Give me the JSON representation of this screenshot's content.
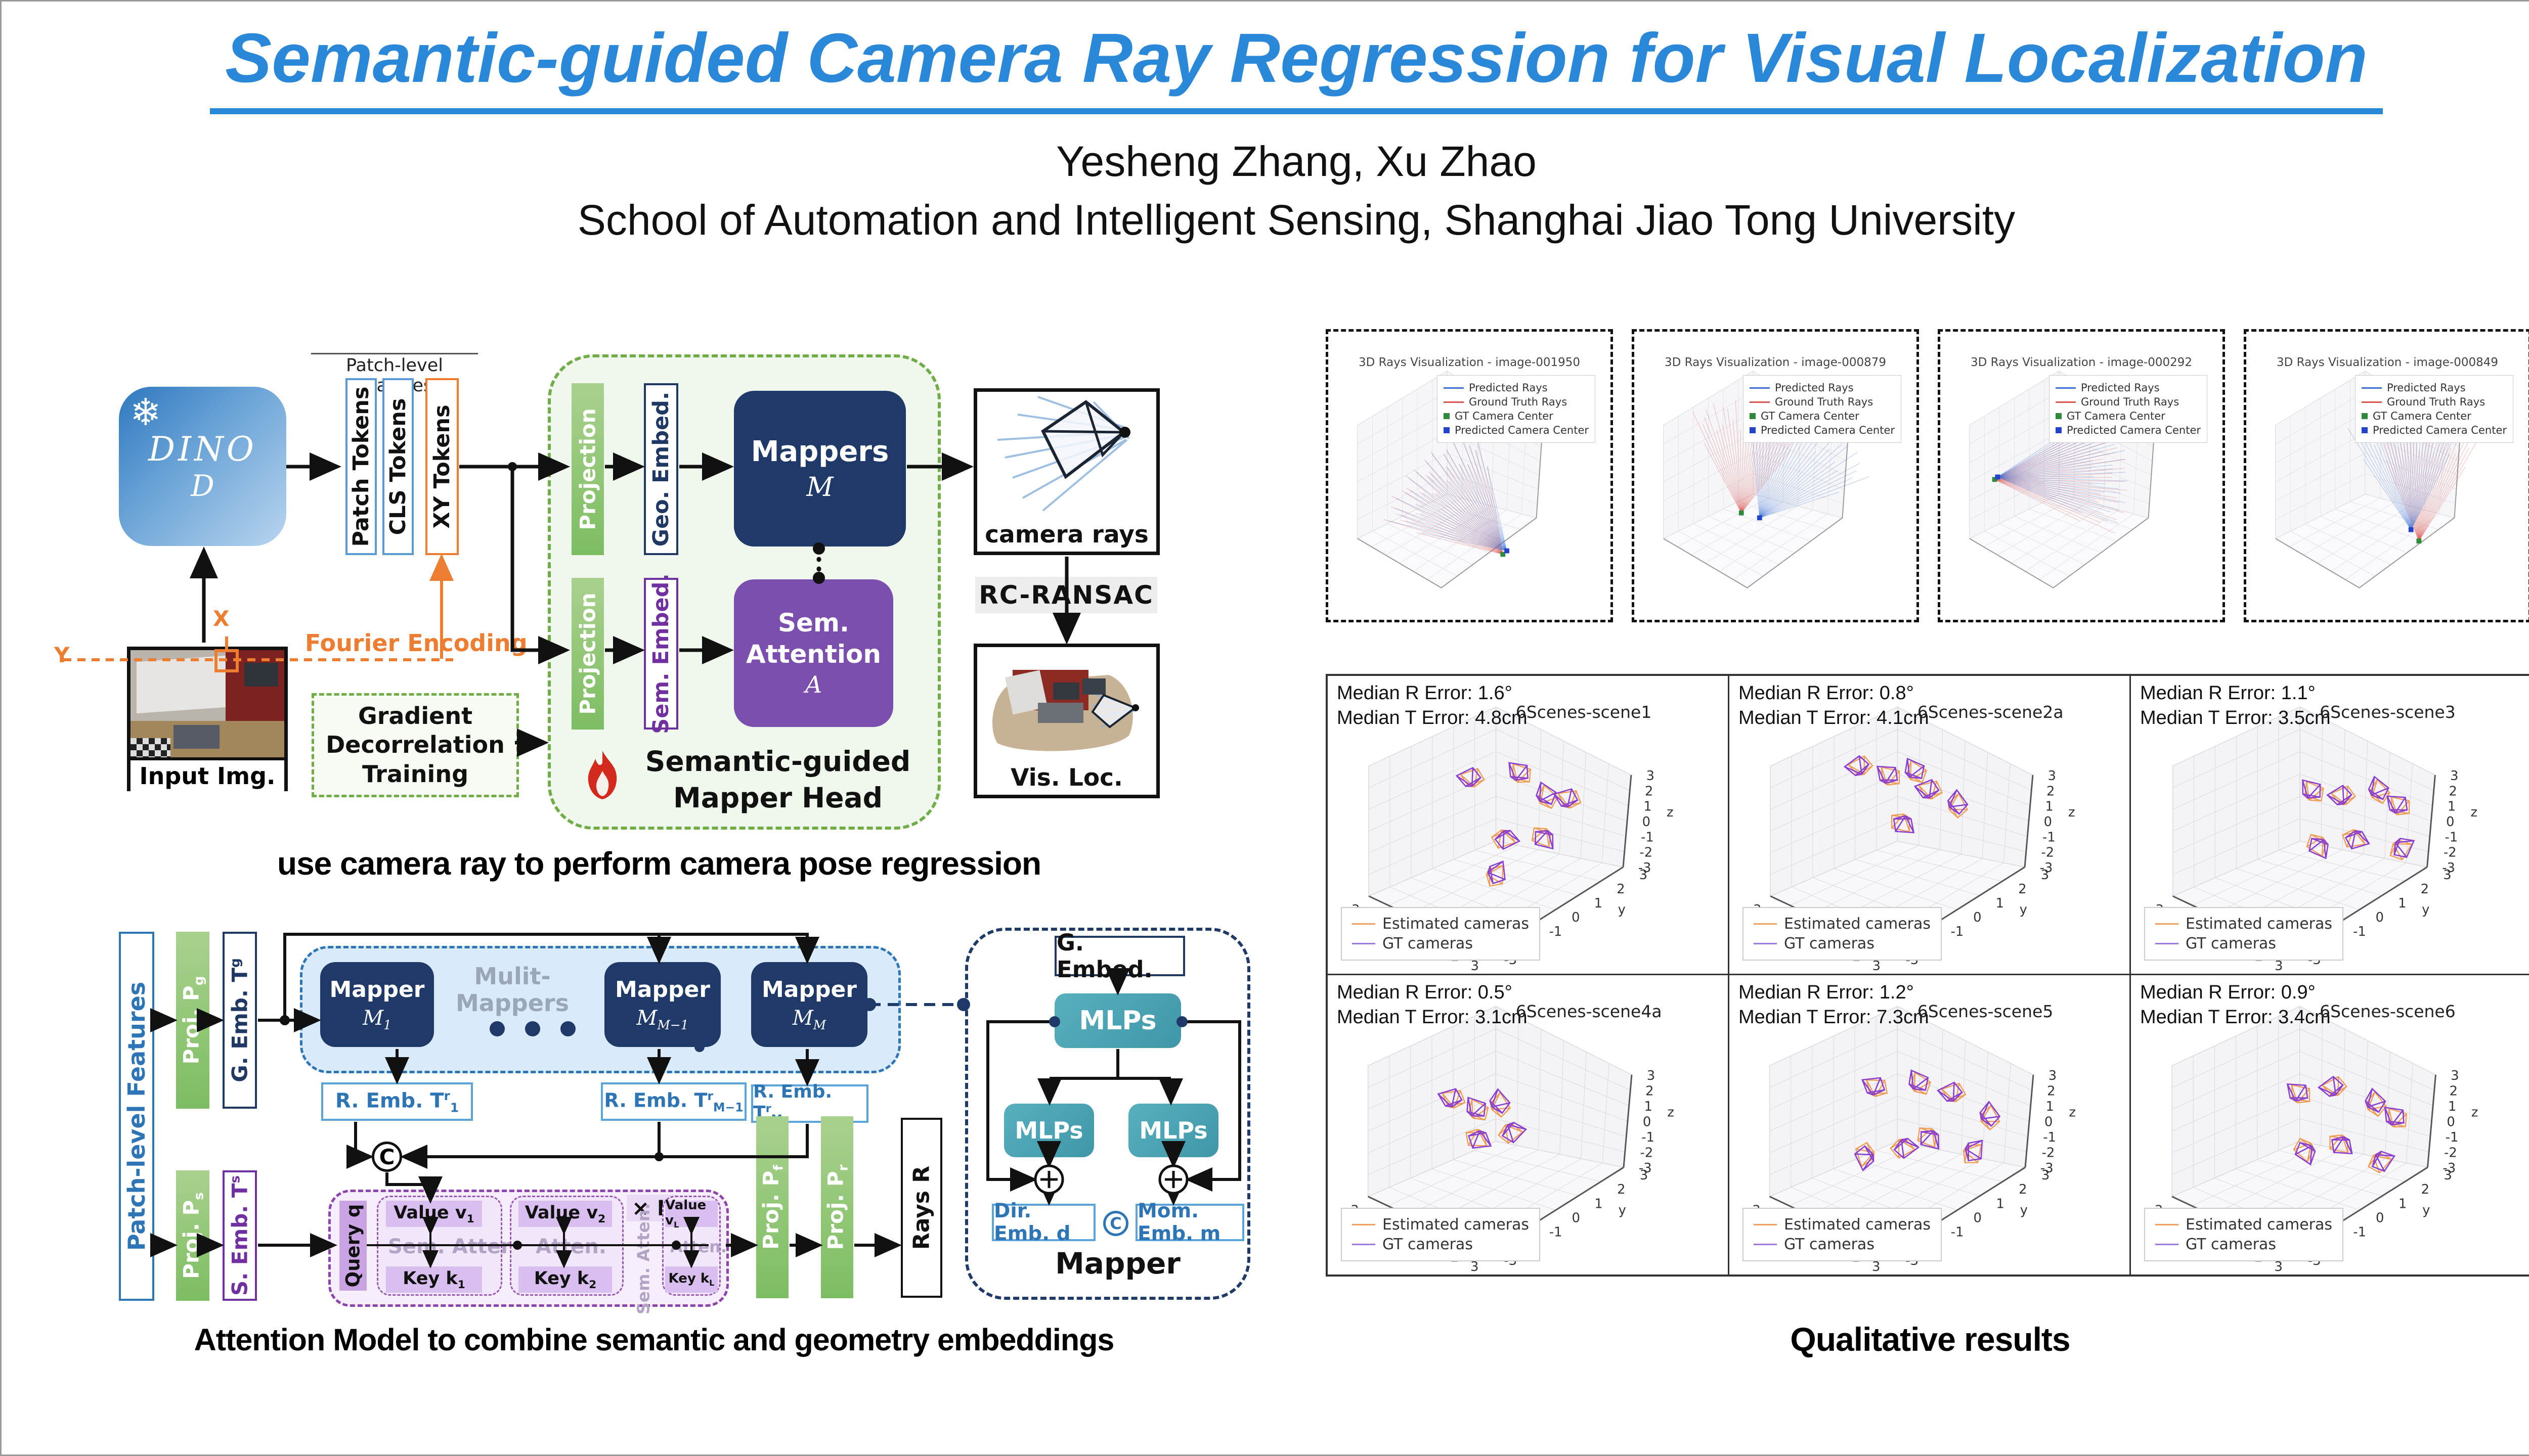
{
  "header": {
    "title": "Semantic-guided Camera Ray Regression for Visual Localization",
    "authors": "Yesheng Zhang, Xu Zhao",
    "affiliation": "School of Automation and Intelligent Sensing, Shanghai Jiao Tong University"
  },
  "arch": {
    "dino": {
      "name": "DINO",
      "symbol": "D",
      "snowflake": "❄"
    },
    "patch_features_label": "Patch-level Features",
    "tokens": [
      {
        "label": "Patch Tokens"
      },
      {
        "label": "CLS Tokens"
      },
      {
        "label": "XY Tokens"
      }
    ],
    "projection1": "Projection",
    "projection2": "Projection",
    "geo_embed": "Geo. Embed.",
    "sem_embed": "Sem. Embed.",
    "mappers": {
      "line1": "Mappers",
      "symbol": "M"
    },
    "sem_attention": {
      "line1": "Sem.",
      "line2": "Attention",
      "symbol": "A"
    },
    "head_label": {
      "line1": "Semantic-guided",
      "line2": "Mapper Head"
    },
    "camera_rays_label": "camera rays",
    "rc_ransac": "RC-RANSAC",
    "vis_loc_label": "Vis. Loc.",
    "input_img_label": "Input Img.",
    "fourier": "Fourier Encoding",
    "x_label": "X",
    "y_label": "Y",
    "gradient_box": {
      "line1": "Gradient",
      "line2": "Decorrelation",
      "line3": "Training"
    },
    "caption": "use camera ray to perform camera pose regression"
  },
  "attention_model": {
    "patch_level_features": "Patch-level Features",
    "proj_g": {
      "text": "Proj. P",
      "sub": "g"
    },
    "g_emb": {
      "text": "G. Emb. T",
      "sup": "g"
    },
    "multi_mappers_label": {
      "line1": "Mulit-",
      "line2": "Mappers"
    },
    "mapper1": {
      "line1": "Mapper",
      "sym": "M",
      "sub": "1"
    },
    "mapper_m1": {
      "line1": "Mapper",
      "sym": "M",
      "sub": "M−1"
    },
    "mapper_m": {
      "line1": "Mapper",
      "sym": "M",
      "sub": "M"
    },
    "r_emb_1": {
      "text": "R. Emb. T",
      "sup": "r",
      "sub": "1"
    },
    "r_emb_m1": {
      "text": "R. Emb. T",
      "sup": "r",
      "sub": "M−1"
    },
    "r_emb_m": {
      "text": "R. Emb. T",
      "sup": "r",
      "sub": "M"
    },
    "concat": "C",
    "query": {
      "text": "Query q"
    },
    "times_l": "× L",
    "sem_atten_vertical": "Sem. Atten.",
    "cells": [
      {
        "value": "Value v",
        "vsub": "1",
        "key": "Key k",
        "ksub": "1",
        "ghost": "Sem. Atten."
      },
      {
        "value": "Value v",
        "vsub": "2",
        "key": "Key k",
        "ksub": "2",
        "ghost": "Atten."
      },
      {
        "value": "Value v",
        "vsub": "L",
        "key": "Key k",
        "ksub": "L",
        "ghost": "Atten."
      }
    ],
    "s_emb": {
      "text": "S. Emb. T",
      "sup": "s"
    },
    "proj_s": {
      "text": "Proj. P",
      "sub": "s"
    },
    "proj_f": {
      "text": "Proj. P",
      "sub": "f"
    },
    "proj_r": {
      "text": "Proj. P",
      "sub": "r"
    },
    "rays": {
      "text": "Rays R"
    },
    "mapper_detail": {
      "g_embed": "G. Embed.",
      "mlps_top": "MLPs",
      "mlps_left": "MLPs",
      "mlps_right": "MLPs",
      "dir_emb": "Dir. Emb. d",
      "concat": "C",
      "mom_emb": "Mom. Emb. m",
      "label": "Mapper"
    },
    "caption": "Attention Model to combine semantic and geometry embeddings"
  },
  "qualitative": {
    "caption": "Qualitative results",
    "ray_panels": [
      {
        "title": "3D Rays Visualization - image-001950"
      },
      {
        "title": "3D Rays Visualization - image-000879"
      },
      {
        "title": "3D Rays Visualization - image-000292"
      },
      {
        "title": "3D Rays Visualization - image-000849"
      }
    ],
    "ray_legend": [
      "Predicted Rays",
      "Ground Truth Rays",
      "GT Camera Center",
      "Predicted Camera Center"
    ],
    "scene_legend": {
      "estimated": "Estimated cameras",
      "gt": "GT cameras"
    },
    "axis": {
      "x_label": "x",
      "y_label": "y",
      "z_label": "z",
      "x_ticks": [
        "-3",
        "-2",
        "-1",
        "0",
        "1",
        "2",
        "3"
      ],
      "y_ticks": [
        "3",
        "2",
        "1",
        "0",
        "-1",
        "-2",
        "-3"
      ],
      "z_ticks": [
        "3",
        "2",
        "1",
        "0",
        "-1",
        "-2",
        "-3"
      ]
    },
    "scenes": [
      {
        "r_error": "Median R Error: 1.6°",
        "t_error": "Median T Error: 4.8cm",
        "name": "6Scenes-scene1"
      },
      {
        "r_error": "Median R Error: 0.8°",
        "t_error": "Median T Error: 4.1cm",
        "name": "6Scenes-scene2a"
      },
      {
        "r_error": "Median R Error: 1.1°",
        "t_error": "Median T Error: 3.5cm",
        "name": "6Scenes-scene3"
      },
      {
        "r_error": "Median R Error: 0.5°",
        "t_error": "Median T Error: 3.1cm",
        "name": "6Scenes-scene4a"
      },
      {
        "r_error": "Median R Error: 1.2°",
        "t_error": "Median T Error: 7.3cm",
        "name": "6Scenes-scene5"
      },
      {
        "r_error": "Median R Error: 0.9°",
        "t_error": "Median T Error: 3.4cm",
        "name": "6Scenes-scene6"
      }
    ]
  },
  "colors": {
    "title_blue": "#2b87d8",
    "navy": "#1f3a68",
    "purple": "#7b4fae",
    "green": "#70ad47",
    "orange": "#ed7d31",
    "teal": "#4aa4b4",
    "estimated_orange": "#f0a060",
    "gt_purple": "#9b7ae0"
  },
  "chart_data": [
    {
      "type": "scatter",
      "panel": "6Scenes-scene1",
      "median_r_error_deg": 1.6,
      "median_t_error_cm": 4.8,
      "axes": {
        "x": [
          -3,
          3
        ],
        "y": [
          -3,
          3
        ],
        "z": [
          -3,
          3
        ]
      },
      "legend": [
        "Estimated cameras",
        "GT cameras"
      ],
      "frustums": [
        [
          0.36,
          0.37,
          -20
        ],
        [
          0.47,
          0.35,
          15
        ],
        [
          0.53,
          0.42,
          40
        ],
        [
          0.6,
          0.44,
          -10
        ],
        [
          0.55,
          0.52,
          200
        ],
        [
          0.44,
          0.52,
          160
        ],
        [
          0.4,
          0.66,
          90
        ]
      ]
    },
    {
      "type": "scatter",
      "panel": "6Scenes-scene2a",
      "median_r_error_deg": 0.8,
      "median_t_error_cm": 4.1,
      "axes": {
        "x": [
          -3,
          3
        ],
        "y": [
          -3,
          3
        ],
        "z": [
          -3,
          3
        ]
      },
      "legend": [
        "Estimated cameras",
        "GT cameras"
      ],
      "frustums": [
        [
          0.33,
          0.33,
          -30
        ],
        [
          0.39,
          0.36,
          10
        ],
        [
          0.45,
          0.34,
          30
        ],
        [
          0.5,
          0.41,
          -15
        ],
        [
          0.44,
          0.47,
          190
        ],
        [
          0.55,
          0.44,
          60
        ]
      ]
    },
    {
      "type": "scatter",
      "panel": "6Scenes-scene3",
      "median_r_error_deg": 1.1,
      "median_t_error_cm": 3.5,
      "axes": {
        "x": [
          -3,
          3
        ],
        "y": [
          -3,
          3
        ],
        "z": [
          -3,
          3
        ]
      },
      "legend": [
        "Estimated cameras",
        "GT cameras"
      ],
      "frustums": [
        [
          0.44,
          0.41,
          20
        ],
        [
          0.53,
          0.43,
          -25
        ],
        [
          0.6,
          0.4,
          45
        ],
        [
          0.66,
          0.46,
          10
        ],
        [
          0.56,
          0.52,
          170
        ],
        [
          0.48,
          0.55,
          210
        ],
        [
          0.66,
          0.56,
          120
        ]
      ]
    },
    {
      "type": "scatter",
      "panel": "6Scenes-scene4a",
      "median_r_error_deg": 0.5,
      "median_t_error_cm": 3.1,
      "axes": {
        "x": [
          -3,
          3
        ],
        "y": [
          -3,
          3
        ],
        "z": [
          -3,
          3
        ]
      },
      "legend": [
        "Estimated cameras",
        "GT cameras"
      ],
      "frustums": [
        [
          0.31,
          0.44,
          -10
        ],
        [
          0.36,
          0.47,
          25
        ],
        [
          0.41,
          0.44,
          55
        ],
        [
          0.38,
          0.52,
          180
        ],
        [
          0.45,
          0.5,
          140
        ]
      ]
    },
    {
      "type": "scatter",
      "panel": "6Scenes-scene5",
      "median_r_error_deg": 1.2,
      "median_t_error_cm": 7.3,
      "axes": {
        "x": [
          -3,
          3
        ],
        "y": [
          -3,
          3
        ],
        "z": [
          -3,
          3
        ]
      },
      "legend": [
        "Estimated cameras",
        "GT cameras"
      ],
      "frustums": [
        [
          0.36,
          0.4,
          0
        ],
        [
          0.46,
          0.38,
          30
        ],
        [
          0.56,
          0.42,
          -20
        ],
        [
          0.63,
          0.48,
          60
        ],
        [
          0.51,
          0.52,
          200
        ],
        [
          0.43,
          0.55,
          150
        ],
        [
          0.59,
          0.58,
          100
        ],
        [
          0.36,
          0.6,
          250
        ]
      ]
    },
    {
      "type": "scatter",
      "panel": "6Scenes-scene6",
      "median_r_error_deg": 0.9,
      "median_t_error_cm": 3.4,
      "axes": {
        "x": [
          -3,
          3
        ],
        "y": [
          -3,
          3
        ],
        "z": [
          -3,
          3
        ]
      },
      "legend": [
        "Estimated cameras",
        "GT cameras"
      ],
      "frustums": [
        [
          0.41,
          0.42,
          10
        ],
        [
          0.51,
          0.4,
          -30
        ],
        [
          0.59,
          0.44,
          50
        ],
        [
          0.65,
          0.5,
          15
        ],
        [
          0.53,
          0.54,
          190
        ],
        [
          0.45,
          0.57,
          220
        ],
        [
          0.61,
          0.6,
          130
        ]
      ]
    },
    {
      "type": "line",
      "panel": "3D Rays Visualization - image-001950",
      "legend": [
        "Predicted Rays",
        "Ground Truth Rays",
        "GT Camera Center",
        "Predicted Camera Center"
      ],
      "fans": {
        "red": {
          "origin": [
            352,
            452
          ],
          "angles": [
            100,
            166
          ],
          "length": 250
        },
        "blue": {
          "origin": [
            360,
            445
          ],
          "angles": [
            103,
            168
          ],
          "length": 245
        }
      }
    },
    {
      "type": "line",
      "panel": "3D Rays Visualization - image-000879",
      "legend": [
        "Predicted Rays",
        "Ground Truth Rays",
        "GT Camera Center",
        "Predicted Camera Center"
      ],
      "fans": {
        "red": {
          "origin": [
            215,
            368
          ],
          "angles": [
            52,
            118
          ],
          "length": 225
        },
        "blue": {
          "origin": [
            252,
            378
          ],
          "angles": [
            18,
            95
          ],
          "length": 235
        }
      }
    },
    {
      "type": "line",
      "panel": "3D Rays Visualization - image-000292",
      "legend": [
        "Predicted Rays",
        "Ground Truth Rays",
        "GT Camera Center",
        "Predicted Camera Center"
      ],
      "fans": {
        "red": {
          "origin": [
            108,
            300
          ],
          "angles": [
            -26,
            30
          ],
          "length": 265
        },
        "blue": {
          "origin": [
            114,
            295
          ],
          "angles": [
            -23,
            33
          ],
          "length": 260
        }
      }
    },
    {
      "type": "line",
      "panel": "3D Rays Visualization - image-000849",
      "legend": [
        "Predicted Rays",
        "Ground Truth Rays",
        "GT Camera Center",
        "Predicted Camera Center"
      ],
      "fans": {
        "red": {
          "origin": [
            348,
            425
          ],
          "angles": [
            58,
            112
          ],
          "length": 245
        },
        "blue": {
          "origin": [
            332,
            402
          ],
          "angles": [
            63,
            124
          ],
          "length": 240
        }
      }
    }
  ]
}
